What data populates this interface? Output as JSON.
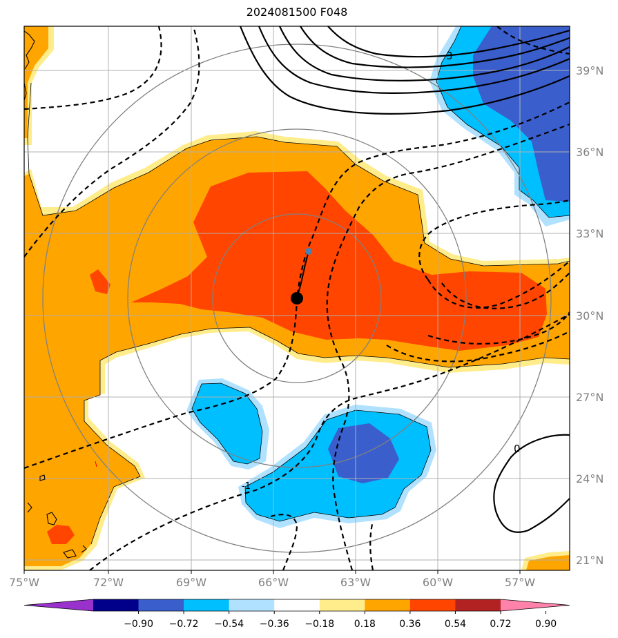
{
  "title": "2024081500 F048",
  "map": {
    "lon_labels": [
      "75°W",
      "72°W",
      "69°W",
      "66°W",
      "63°W",
      "60°W",
      "57°W"
    ],
    "lat_labels": [
      "39°N",
      "36°N",
      "33°N",
      "30°N",
      "27°N",
      "24°N",
      "21°N"
    ],
    "contour_labels": [
      "3",
      "0",
      "-1"
    ],
    "storm_center": "65°W 30.6°N"
  },
  "colorbar": {
    "tick_labels": [
      "−0.90",
      "−0.72",
      "−0.54",
      "−0.36",
      "−0.18",
      "0.18",
      "0.36",
      "0.54",
      "0.72",
      "0.90"
    ],
    "colors": [
      "#9932cc",
      "#00008b",
      "#3a5fcd",
      "#00bfff",
      "#b0e2ff",
      "#ffffff",
      "#ffec8b",
      "#ffa500",
      "#ff4500",
      "#b22222",
      "#ff82ab"
    ]
  },
  "colors": {
    "orange": "#ffa500",
    "red_orange": "#ff4500",
    "light_yellow": "#ffec8b",
    "royal_blue": "#3a5fcd",
    "deep_sky_blue": "#00bfff",
    "light_blue": "#b0e2ff"
  }
}
